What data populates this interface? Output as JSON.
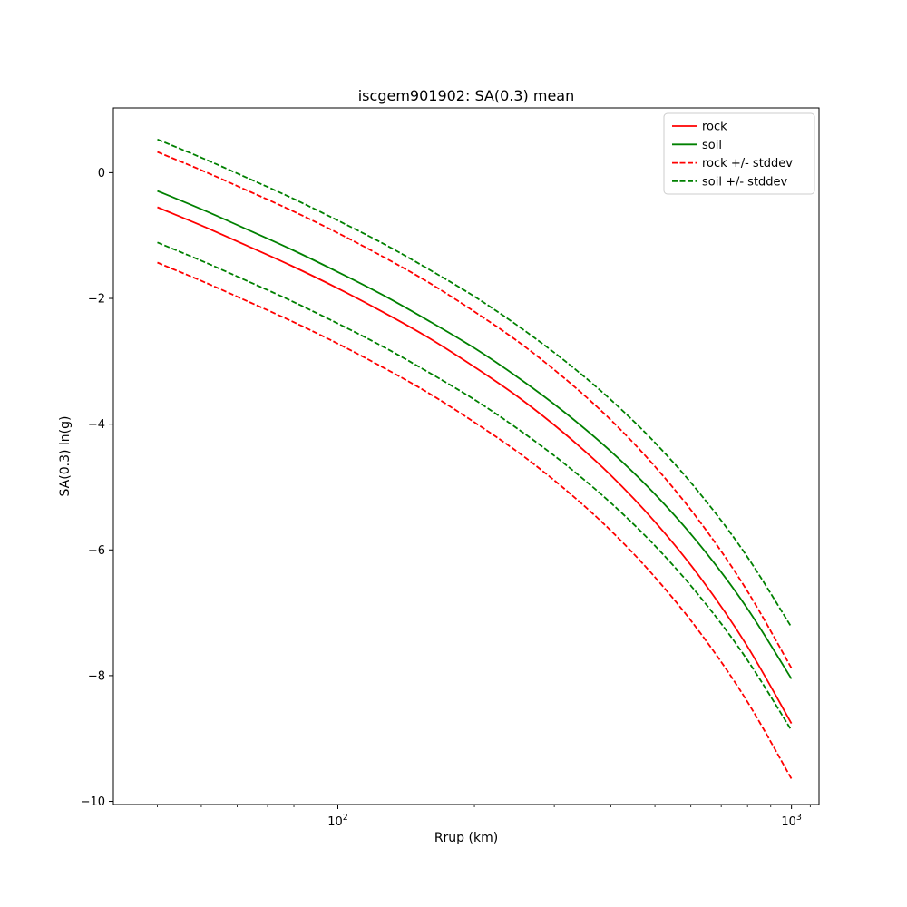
{
  "chart_data": {
    "type": "line",
    "title": "iscgem901902: SA(0.3) mean",
    "xlabel": "Rrup (km)",
    "ylabel": "SA(0.3) ln(g)",
    "x_scale": "log",
    "xlim": [
      32,
      1150
    ],
    "ylim": [
      -10.05,
      1.03
    ],
    "grid": false,
    "legend_position": "upper right",
    "x_major_ticks": [
      {
        "value": 100,
        "mantissa": "10",
        "exponent": "2"
      },
      {
        "value": 1000,
        "mantissa": "10",
        "exponent": "3"
      }
    ],
    "x_minor_ticks": [
      40,
      50,
      60,
      70,
      80,
      90,
      200,
      300,
      400,
      500,
      600,
      700,
      800,
      900,
      1100
    ],
    "y_ticks": [
      {
        "value": 0,
        "label": "0"
      },
      {
        "value": -2,
        "label": "−2"
      },
      {
        "value": -4,
        "label": "−4"
      },
      {
        "value": -6,
        "label": "−6"
      },
      {
        "value": -8,
        "label": "−8"
      },
      {
        "value": -10,
        "label": "−10"
      }
    ],
    "x": [
      40,
      50,
      63,
      79,
      100,
      126,
      158,
      200,
      251,
      316,
      398,
      501,
      631,
      794,
      1000
    ],
    "series": [
      {
        "name": "rock",
        "color": "#ff0000",
        "dashed": false,
        "values": [
          -0.55,
          -0.84,
          -1.16,
          -1.48,
          -1.84,
          -2.22,
          -2.62,
          -3.09,
          -3.58,
          -4.15,
          -4.8,
          -5.56,
          -6.45,
          -7.5,
          -8.76
        ]
      },
      {
        "name": "soil",
        "color": "#008000",
        "dashed": false,
        "values": [
          -0.29,
          -0.58,
          -0.9,
          -1.22,
          -1.58,
          -1.95,
          -2.35,
          -2.79,
          -3.27,
          -3.81,
          -4.42,
          -5.12,
          -5.94,
          -6.9,
          -8.05
        ]
      },
      {
        "name": "rock + stddev",
        "color": "#ff0000",
        "dashed": true,
        "values": [
          0.33,
          0.04,
          -0.28,
          -0.6,
          -0.96,
          -1.34,
          -1.74,
          -2.21,
          -2.7,
          -3.27,
          -3.92,
          -4.68,
          -5.57,
          -6.62,
          -7.88
        ]
      },
      {
        "name": "rock - stddev",
        "color": "#ff0000",
        "dashed": true,
        "values": [
          -1.43,
          -1.72,
          -2.04,
          -2.36,
          -2.72,
          -3.1,
          -3.5,
          -3.97,
          -4.46,
          -5.03,
          -5.68,
          -6.44,
          -7.33,
          -8.38,
          -9.64
        ]
      },
      {
        "name": "soil + stddev",
        "color": "#008000",
        "dashed": true,
        "values": [
          0.53,
          0.24,
          -0.08,
          -0.4,
          -0.76,
          -1.13,
          -1.53,
          -1.97,
          -2.45,
          -2.99,
          -3.6,
          -4.3,
          -5.12,
          -6.08,
          -7.23
        ]
      },
      {
        "name": "soil - stddev",
        "color": "#008000",
        "dashed": true,
        "values": [
          -1.11,
          -1.4,
          -1.72,
          -2.04,
          -2.4,
          -2.77,
          -3.17,
          -3.61,
          -4.09,
          -4.63,
          -5.24,
          -5.94,
          -6.76,
          -7.72,
          -8.87
        ]
      }
    ],
    "legend": [
      {
        "label": "rock",
        "color": "#ff0000",
        "dashed": false
      },
      {
        "label": "soil",
        "color": "#008000",
        "dashed": false
      },
      {
        "label": "rock +/- stddev",
        "color": "#ff0000",
        "dashed": true
      },
      {
        "label": "soil +/- stddev",
        "color": "#008000",
        "dashed": true
      }
    ]
  }
}
